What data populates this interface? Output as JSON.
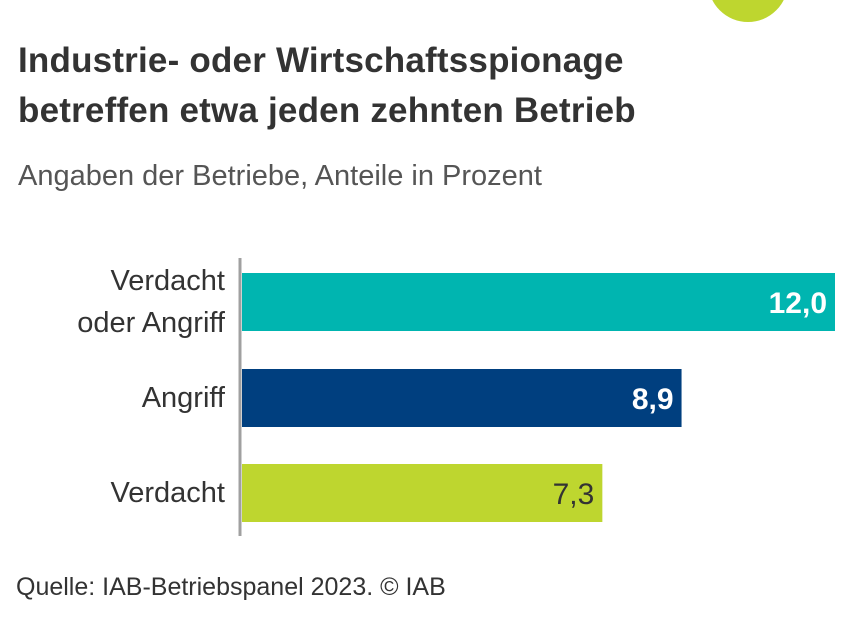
{
  "title_lines": [
    "Industrie- oder Wirtschaftsspionage",
    "betreffen etwa jeden zehnten Betrieb"
  ],
  "subtitle": "Angaben der Betriebe, Anteile in Prozent",
  "source": "Quelle: IAB-Betriebspanel 2023.   © IAB",
  "colors": {
    "accent": "#bed62f",
    "teal": "#00b5b0",
    "navy": "#003f7f",
    "lime": "#bed62f",
    "axis": "#a0a0a0"
  },
  "chart_data": {
    "type": "bar",
    "orientation": "horizontal",
    "title": "Industrie- oder Wirtschaftsspionage betreffen etwa jeden zehnten Betrieb",
    "subtitle": "Angaben der Betriebe, Anteile in Prozent",
    "categories": [
      [
        "Verdacht",
        "oder Angriff"
      ],
      [
        "Angriff"
      ],
      [
        "Verdacht"
      ]
    ],
    "values": [
      12.0,
      8.9,
      7.3
    ],
    "value_labels": [
      "12,0",
      "8,9",
      "7,3"
    ],
    "bar_colors": [
      "#00b5b0",
      "#003f7f",
      "#bed62f"
    ],
    "label_colors": [
      "#ffffff",
      "#ffffff",
      "#333333"
    ],
    "xlim": [
      0,
      12
    ],
    "grid": false,
    "legend": "none"
  }
}
